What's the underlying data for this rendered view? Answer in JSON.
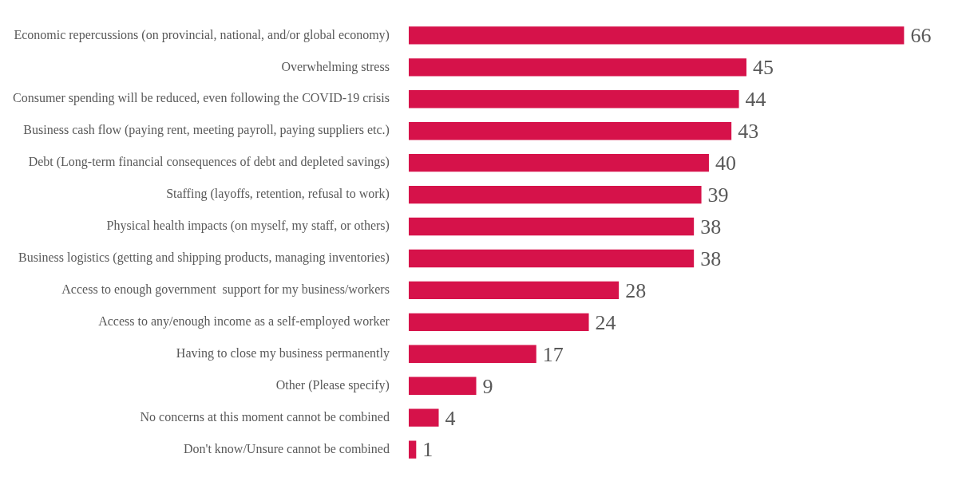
{
  "chart_data": {
    "type": "bar",
    "orientation": "horizontal",
    "categories": [
      "Economic repercussions (on provincial, national, and/or global economy)",
      "Overwhelming stress",
      "Consumer spending will be reduced, even following the COVID-19 crisis",
      "Business cash flow (paying rent, meeting payroll, paying suppliers etc.)",
      "Debt (Long-term financial consequences of debt and depleted savings)",
      "Staffing (layoffs, retention, refusal to work)",
      "Physical health impacts (on myself, my staff, or others)",
      "Business logistics (getting and shipping products, managing inventories)",
      "Access to enough government  support for my business/workers",
      "Access to any/enough income as a self-employed worker",
      "Having to close my business permanently",
      "Other (Please specify)",
      "No concerns at this moment cannot be combined",
      "Don't know/Unsure cannot be combined"
    ],
    "values": [
      66,
      45,
      44,
      43,
      40,
      39,
      38,
      38,
      28,
      24,
      17,
      9,
      4,
      1
    ],
    "color": "#d6124a",
    "data_labels": true,
    "legend": false
  }
}
